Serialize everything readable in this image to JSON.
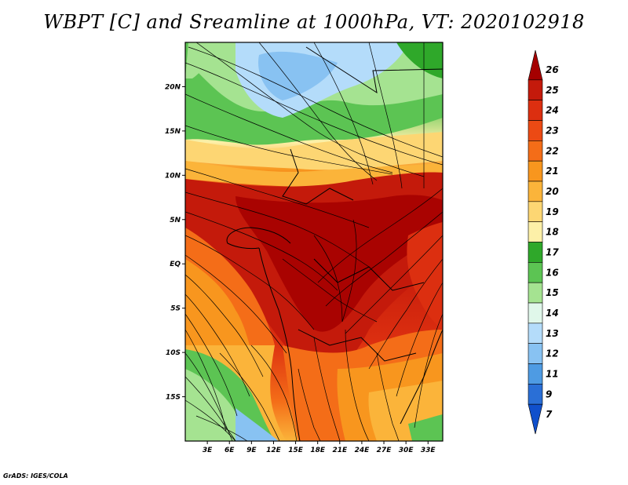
{
  "title": "WBPT [C] and Sreamline at 1000hPa, VT: 2020102918",
  "footer": "GrADS: IGES/COLA",
  "map": {
    "lat_labels": [
      "20N",
      "15N",
      "10N",
      "5N",
      "EQ",
      "5S",
      "10S",
      "15S"
    ],
    "lat_values": [
      20,
      15,
      10,
      5,
      0,
      -5,
      -10,
      -15
    ],
    "lon_labels": [
      "3E",
      "6E",
      "9E",
      "12E",
      "15E",
      "18E",
      "21E",
      "24E",
      "27E",
      "30E",
      "33E"
    ],
    "lon_values": [
      3,
      6,
      9,
      12,
      15,
      18,
      21,
      24,
      27,
      30,
      33
    ],
    "lon_range": [
      0,
      35
    ],
    "lat_range": [
      -20,
      25
    ]
  },
  "colorbar": {
    "labels": [
      "26",
      "25",
      "24",
      "23",
      "22",
      "21",
      "20",
      "19",
      "18",
      "17",
      "16",
      "15",
      "14",
      "13",
      "12",
      "11",
      "9",
      "7"
    ],
    "colors": [
      "#a50000",
      "#c41a0b",
      "#dc2f10",
      "#ec4a14",
      "#f46d18",
      "#f8961e",
      "#fbb43a",
      "#fdd673",
      "#fdf0a8",
      "#2fa82a",
      "#5cc453",
      "#a5e391",
      "#e0f7ea",
      "#b4dcfa",
      "#88c2f2",
      "#4e9be3",
      "#2a6fd6",
      "#1050cc"
    ]
  }
}
